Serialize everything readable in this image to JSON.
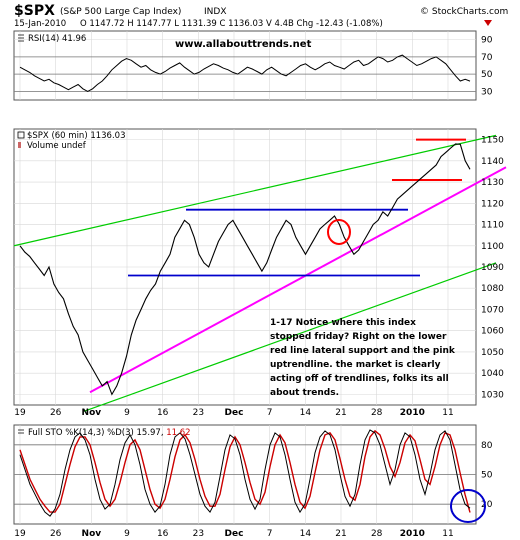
{
  "header": {
    "symbol": "$SPX",
    "name": "(S&P 500 Large Cap Index)",
    "exchange": "INDX",
    "date": "15-Jan-2010",
    "quote": "O 1147.72  H 1147.77  L 1131.39  C 1136.03  V 4.4B  Chg -12.43 (-1.08%)",
    "source": "© StockCharts.com"
  },
  "watermark": "www.allabouttrends.net",
  "annotation": [
    "1-17 Notice where this index",
    "stopped friday? Right on the lower",
    "red line lateral support and the pink",
    "uptrendline. the market is clearly",
    "acting off of trendlines, folks its all",
    "about trends."
  ],
  "colors": {
    "price": "#000000",
    "rsi": "#000000",
    "sto_k": "#000000",
    "sto_d": "#cc0000",
    "uptrend_pink": "#ff00ff",
    "channel_green": "#00cc00",
    "support_blue": "#0000cc",
    "resistance_red": "#ff0000",
    "annotation_text": "#0000cc",
    "chg_negative": "#cc0000"
  },
  "x_axis": {
    "ticks": [
      "19",
      "26",
      "Nov",
      "9",
      "16",
      "23",
      "Dec",
      "7",
      "14",
      "21",
      "28",
      "2010",
      "11"
    ],
    "bold": [
      "Nov",
      "Dec",
      "2010"
    ]
  },
  "chart_data": [
    {
      "type": "line",
      "title": "RSI(14) 41.96",
      "label": "RSI(14)",
      "value": "41.96",
      "ylim": [
        20,
        100
      ],
      "yticks": [
        30,
        50,
        70,
        90
      ],
      "reference_lines": [
        30,
        50,
        70
      ],
      "values": [
        58,
        55,
        52,
        48,
        45,
        42,
        44,
        40,
        38,
        35,
        32,
        35,
        38,
        33,
        30,
        33,
        38,
        42,
        48,
        55,
        60,
        65,
        68,
        66,
        62,
        58,
        60,
        55,
        52,
        50,
        53,
        57,
        60,
        63,
        58,
        54,
        50,
        52,
        56,
        59,
        62,
        60,
        57,
        55,
        52,
        50,
        54,
        58,
        56,
        53,
        50,
        55,
        58,
        54,
        50,
        48,
        52,
        56,
        60,
        62,
        58,
        55,
        58,
        62,
        64,
        60,
        58,
        56,
        60,
        64,
        66,
        60,
        62,
        66,
        70,
        68,
        64,
        66,
        70,
        72,
        68,
        64,
        60,
        62,
        65,
        68,
        70,
        66,
        62,
        55,
        48,
        42,
        44,
        41.96
      ]
    },
    {
      "type": "line",
      "title": "$SPX (60 min) 1136.03",
      "legend": [
        "$SPX (60 min) 1136.03",
        "Volume undef"
      ],
      "ylim": [
        1025,
        1155
      ],
      "yticks": [
        1030,
        1040,
        1050,
        1060,
        1070,
        1080,
        1090,
        1100,
        1110,
        1120,
        1130,
        1140,
        1150
      ],
      "values": [
        1100,
        1097,
        1095,
        1092,
        1089,
        1086,
        1090,
        1082,
        1078,
        1075,
        1068,
        1062,
        1058,
        1050,
        1046,
        1042,
        1038,
        1034,
        1036,
        1030,
        1034,
        1040,
        1048,
        1058,
        1065,
        1070,
        1075,
        1079,
        1082,
        1088,
        1092,
        1096,
        1104,
        1108,
        1112,
        1110,
        1104,
        1096,
        1092,
        1090,
        1096,
        1102,
        1106,
        1110,
        1112,
        1108,
        1104,
        1100,
        1096,
        1092,
        1088,
        1092,
        1098,
        1104,
        1108,
        1112,
        1110,
        1104,
        1100,
        1096,
        1100,
        1104,
        1108,
        1110,
        1112,
        1114,
        1110,
        1104,
        1100,
        1096,
        1098,
        1102,
        1106,
        1110,
        1112,
        1116,
        1114,
        1118,
        1122,
        1124,
        1126,
        1128,
        1130,
        1132,
        1134,
        1136,
        1138,
        1142,
        1144,
        1146,
        1148,
        1147.77,
        1140,
        1136.03
      ],
      "annotations": {
        "resistance": {
          "y": 1150,
          "range": "2010–11"
        },
        "lower_support": {
          "y": 1131,
          "range": "28–11"
        },
        "upper_range": {
          "y": 1117,
          "range": "16–2010"
        },
        "lower_range": {
          "y": 1086,
          "range": "9–11"
        },
        "uptrend": {
          "from": 1031,
          "to": 1131
        },
        "channel_upper": {
          "from": 1100,
          "to": 1152
        },
        "channel_lower": {
          "from": 1022,
          "to": 1092
        }
      }
    },
    {
      "type": "line",
      "title": "Full STO %K(14,3) %D(3) 15.97, 11.62",
      "label": "Full STO %K(14,3) %D(3)",
      "k_value": "15.97",
      "d_value": "11.62",
      "ylim": [
        0,
        100
      ],
      "yticks": [
        20,
        50,
        80
      ],
      "reference_lines": [
        20,
        50,
        80
      ],
      "series": [
        {
          "name": "%K",
          "values": [
            70,
            55,
            40,
            30,
            20,
            12,
            8,
            15,
            30,
            55,
            75,
            88,
            92,
            85,
            70,
            45,
            25,
            15,
            20,
            40,
            65,
            82,
            90,
            80,
            60,
            35,
            20,
            12,
            18,
            40,
            70,
            88,
            92,
            86,
            70,
            50,
            30,
            18,
            12,
            22,
            48,
            75,
            90,
            86,
            70,
            45,
            25,
            15,
            25,
            55,
            80,
            92,
            88,
            70,
            45,
            22,
            12,
            20,
            45,
            72,
            88,
            94,
            90,
            75,
            50,
            28,
            18,
            30,
            60,
            85,
            95,
            92,
            80,
            60,
            40,
            55,
            80,
            92,
            88,
            70,
            45,
            30,
            50,
            75,
            90,
            94,
            85,
            60,
            35,
            20,
            15.97
          ]
        },
        {
          "name": "%D",
          "values": [
            75,
            60,
            45,
            35,
            25,
            18,
            12,
            12,
            20,
            40,
            60,
            78,
            88,
            88,
            80,
            62,
            42,
            25,
            18,
            25,
            42,
            62,
            80,
            85,
            75,
            55,
            35,
            20,
            16,
            25,
            45,
            68,
            85,
            90,
            82,
            65,
            45,
            28,
            18,
            18,
            30,
            55,
            78,
            88,
            80,
            62,
            42,
            25,
            20,
            32,
            58,
            80,
            90,
            82,
            62,
            40,
            22,
            16,
            28,
            52,
            75,
            90,
            92,
            85,
            66,
            45,
            28,
            24,
            40,
            68,
            88,
            94,
            90,
            76,
            58,
            48,
            62,
            82,
            90,
            84,
            65,
            45,
            40,
            58,
            80,
            92,
            90,
            75,
            52,
            30,
            11.62
          ]
        }
      ]
    }
  ]
}
